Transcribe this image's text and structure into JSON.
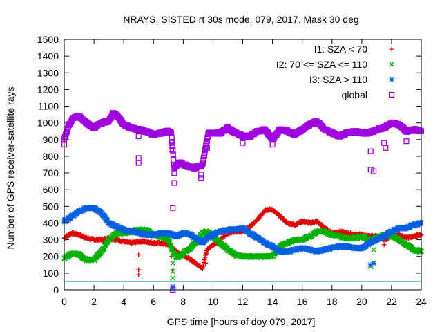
{
  "chart_data": {
    "type": "scatter",
    "title": "NRAYS. SISTED rt 30s mode. 079, 2017. Mask 30 deg",
    "xlabel": "GPS time [hours of doy 079, 2017]",
    "ylabel": "Number of GPS receiver-satellite rays",
    "xlim": [
      0,
      24
    ],
    "ylim": [
      0,
      1500
    ],
    "x_ticks": [
      0,
      2,
      4,
      6,
      8,
      10,
      12,
      14,
      16,
      18,
      20,
      22,
      24
    ],
    "y_ticks": [
      0,
      100,
      200,
      300,
      400,
      500,
      600,
      700,
      800,
      900,
      1000,
      1100,
      1200,
      1300,
      1400,
      1500
    ],
    "legend_position": "top-right",
    "threshold_line": {
      "y": 50,
      "color": "#00b0b0"
    },
    "series": [
      {
        "name": "I1: SZA < 70",
        "color": "#e00000",
        "marker": "plus",
        "points": [
          [
            0,
            310
          ],
          [
            0.5,
            340
          ],
          [
            1,
            330
          ],
          [
            1.5,
            310
          ],
          [
            2,
            300
          ],
          [
            2.5,
            300
          ],
          [
            3,
            310
          ],
          [
            3.5,
            300
          ],
          [
            4,
            290
          ],
          [
            4.5,
            280
          ],
          [
            5,
            290
          ],
          [
            5.5,
            290
          ],
          [
            6,
            280
          ],
          [
            6.5,
            280
          ],
          [
            7,
            270
          ],
          [
            7.3,
            250
          ],
          [
            7.6,
            220
          ],
          [
            8,
            210
          ],
          [
            8.5,
            180
          ],
          [
            9,
            150
          ],
          [
            9.3,
            130
          ],
          [
            9.6,
            240
          ],
          [
            10,
            270
          ],
          [
            10.5,
            300
          ],
          [
            11,
            340
          ],
          [
            11.5,
            350
          ],
          [
            12,
            350
          ],
          [
            12.5,
            380
          ],
          [
            13,
            420
          ],
          [
            13.5,
            480
          ],
          [
            14,
            480
          ],
          [
            14.5,
            440
          ],
          [
            15,
            400
          ],
          [
            15.5,
            390
          ],
          [
            16,
            410
          ],
          [
            16.5,
            400
          ],
          [
            17,
            410
          ],
          [
            17.5,
            370
          ],
          [
            18,
            340
          ],
          [
            18.5,
            350
          ],
          [
            19,
            340
          ],
          [
            19.5,
            330
          ],
          [
            20,
            330
          ],
          [
            20.5,
            320
          ],
          [
            21,
            320
          ],
          [
            21.5,
            300
          ],
          [
            22,
            320
          ],
          [
            22.5,
            330
          ],
          [
            23,
            310
          ],
          [
            23.5,
            320
          ],
          [
            24,
            330
          ]
        ],
        "outliers": [
          [
            5,
            90
          ],
          [
            5,
            120
          ],
          [
            5,
            210
          ],
          [
            7.2,
            200
          ],
          [
            7.3,
            120
          ],
          [
            9.5,
            160
          ],
          [
            21.5,
            270
          ]
        ]
      },
      {
        "name": "I2: 70 <= SZA <= 110",
        "color": "#00b000",
        "marker": "cross",
        "points": [
          [
            0,
            190
          ],
          [
            0.5,
            220
          ],
          [
            1,
            210
          ],
          [
            1.5,
            180
          ],
          [
            2,
            180
          ],
          [
            2.5,
            230
          ],
          [
            3,
            300
          ],
          [
            3.5,
            340
          ],
          [
            4,
            340
          ],
          [
            4.5,
            350
          ],
          [
            5,
            360
          ],
          [
            5.5,
            360
          ],
          [
            6,
            330
          ],
          [
            6.5,
            320
          ],
          [
            7,
            300
          ],
          [
            7.3,
            230
          ],
          [
            7.6,
            190
          ],
          [
            8,
            220
          ],
          [
            8.5,
            250
          ],
          [
            9,
            300
          ],
          [
            9.3,
            340
          ],
          [
            9.6,
            350
          ],
          [
            10,
            320
          ],
          [
            10.5,
            280
          ],
          [
            11,
            240
          ],
          [
            11.5,
            210
          ],
          [
            12,
            200
          ],
          [
            12.5,
            200
          ],
          [
            13,
            200
          ],
          [
            13.5,
            200
          ],
          [
            14,
            200
          ],
          [
            14.5,
            260
          ],
          [
            15,
            280
          ],
          [
            15.5,
            300
          ],
          [
            16,
            300
          ],
          [
            16.5,
            320
          ],
          [
            17,
            350
          ],
          [
            17.5,
            350
          ],
          [
            18,
            330
          ],
          [
            18.5,
            320
          ],
          [
            19,
            310
          ],
          [
            19.5,
            310
          ],
          [
            20,
            320
          ],
          [
            20.5,
            300
          ],
          [
            21,
            310
          ],
          [
            21.5,
            330
          ],
          [
            22,
            320
          ],
          [
            22.5,
            300
          ],
          [
            23,
            270
          ],
          [
            23.5,
            240
          ],
          [
            24,
            230
          ]
        ],
        "outliers": [
          [
            7.3,
            70
          ],
          [
            7.3,
            110
          ],
          [
            7.3,
            160
          ],
          [
            20.6,
            140
          ],
          [
            20.8,
            240
          ]
        ]
      },
      {
        "name": "I3: SZA > 110",
        "color": "#0060e0",
        "marker": "star",
        "points": [
          [
            0,
            410
          ],
          [
            0.5,
            440
          ],
          [
            1,
            470
          ],
          [
            1.5,
            490
          ],
          [
            2,
            490
          ],
          [
            2.5,
            460
          ],
          [
            3,
            400
          ],
          [
            3.5,
            380
          ],
          [
            4,
            360
          ],
          [
            4.5,
            350
          ],
          [
            5,
            340
          ],
          [
            5.5,
            330
          ],
          [
            6,
            330
          ],
          [
            6.5,
            340
          ],
          [
            7,
            340
          ],
          [
            7.3,
            330
          ],
          [
            7.6,
            320
          ],
          [
            8,
            340
          ],
          [
            8.5,
            330
          ],
          [
            9,
            300
          ],
          [
            9.3,
            280
          ],
          [
            9.6,
            310
          ],
          [
            10,
            330
          ],
          [
            10.5,
            350
          ],
          [
            11,
            360
          ],
          [
            11.5,
            360
          ],
          [
            12,
            370
          ],
          [
            12.5,
            340
          ],
          [
            13,
            310
          ],
          [
            13.5,
            280
          ],
          [
            14,
            260
          ],
          [
            14.5,
            230
          ],
          [
            15,
            230
          ],
          [
            15.5,
            240
          ],
          [
            16,
            250
          ],
          [
            16.5,
            240
          ],
          [
            17,
            230
          ],
          [
            17.5,
            240
          ],
          [
            18,
            250
          ],
          [
            18.5,
            260
          ],
          [
            19,
            260
          ],
          [
            19.5,
            250
          ],
          [
            20,
            250
          ],
          [
            20.5,
            280
          ],
          [
            21,
            300
          ],
          [
            21.5,
            320
          ],
          [
            22,
            350
          ],
          [
            22.5,
            370
          ],
          [
            23,
            370
          ],
          [
            23.5,
            390
          ],
          [
            24,
            400
          ]
        ],
        "outliers": [
          [
            7.3,
            10
          ],
          [
            7.3,
            20
          ],
          [
            20.6,
            150
          ],
          [
            20.8,
            160
          ]
        ]
      },
      {
        "name": "global",
        "color": "#a000e0",
        "marker": "square",
        "points": [
          [
            0,
            900
          ],
          [
            0.3,
            980
          ],
          [
            0.6,
            1030
          ],
          [
            1,
            1040
          ],
          [
            1.5,
            1000
          ],
          [
            2,
            970
          ],
          [
            2.5,
            1000
          ],
          [
            3,
            1010
          ],
          [
            3.3,
            1060
          ],
          [
            3.6,
            1040
          ],
          [
            4,
            990
          ],
          [
            4.5,
            970
          ],
          [
            5,
            960
          ],
          [
            5.5,
            950
          ],
          [
            6,
            930
          ],
          [
            6.5,
            940
          ],
          [
            7,
            950
          ],
          [
            7.2,
            940
          ],
          [
            7.4,
            730
          ],
          [
            7.8,
            760
          ],
          [
            8.3,
            740
          ],
          [
            8.8,
            730
          ],
          [
            9.3,
            750
          ],
          [
            9.5,
            850
          ],
          [
            9.7,
            940
          ],
          [
            10,
            940
          ],
          [
            10.5,
            940
          ],
          [
            11,
            970
          ],
          [
            11.5,
            940
          ],
          [
            12,
            920
          ],
          [
            12.5,
            920
          ],
          [
            13,
            950
          ],
          [
            13.5,
            960
          ],
          [
            14,
            900
          ],
          [
            14.5,
            960
          ],
          [
            15,
            950
          ],
          [
            15.5,
            930
          ],
          [
            16,
            960
          ],
          [
            16.5,
            990
          ],
          [
            17,
            1010
          ],
          [
            17.5,
            960
          ],
          [
            18,
            940
          ],
          [
            18.5,
            920
          ],
          [
            19,
            940
          ],
          [
            19.5,
            950
          ],
          [
            20,
            940
          ],
          [
            20.5,
            940
          ],
          [
            21,
            960
          ],
          [
            21.5,
            970
          ],
          [
            22,
            1000
          ],
          [
            22.5,
            990
          ],
          [
            23,
            950
          ],
          [
            23.5,
            960
          ],
          [
            24,
            950
          ]
        ],
        "outliers": [
          [
            0,
            870
          ],
          [
            5,
            920
          ],
          [
            5,
            790
          ],
          [
            5,
            760
          ],
          [
            7.2,
            880
          ],
          [
            7.2,
            840
          ],
          [
            7.4,
            700
          ],
          [
            7.4,
            640
          ],
          [
            7.3,
            490
          ],
          [
            7.3,
            0
          ],
          [
            9.2,
            690
          ],
          [
            9.2,
            670
          ],
          [
            9.6,
            850
          ],
          [
            12,
            880
          ],
          [
            14,
            870
          ],
          [
            20.6,
            830
          ],
          [
            20.6,
            720
          ],
          [
            20.8,
            710
          ],
          [
            21.5,
            880
          ],
          [
            21.6,
            850
          ],
          [
            23,
            890
          ]
        ]
      }
    ]
  }
}
